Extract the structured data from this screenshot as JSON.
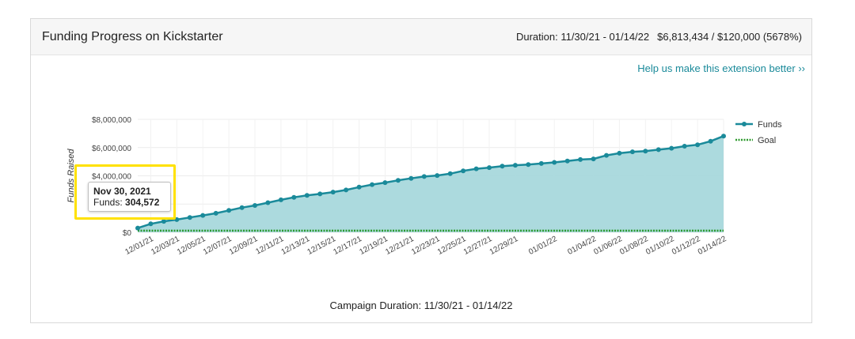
{
  "header": {
    "title": "Funding Progress on Kickstarter",
    "duration_text": "Duration: 11/30/21 - 01/14/22",
    "funding_text": "$6,813,434 / $120,000 (5678%)"
  },
  "help_link": "Help us make this extension better ››",
  "footer": "Campaign Duration: 11/30/21 - 01/14/22",
  "tooltip": {
    "date": "Nov 30, 2021",
    "label": "Funds: ",
    "value": "304,572"
  },
  "colors": {
    "funds_line": "#1a8a9a",
    "funds_fill": "#a8d8dc",
    "goal_line": "#2e9a2e",
    "highlight": "#ffe100"
  },
  "chart_data": {
    "type": "area",
    "ylabel": "Funds Raised",
    "xlabel": "Campaign Duration: 11/30/21 - 01/14/22",
    "ylim": [
      0,
      8000000
    ],
    "y_ticks": [
      "$0",
      "$2,000,000",
      "$4,000,000",
      "$6,000,000",
      "$8,000,000"
    ],
    "y_tick_values": [
      0,
      2000000,
      4000000,
      6000000,
      8000000
    ],
    "y_tick_labels_shown": [
      true,
      false,
      true,
      true,
      true
    ],
    "x_tick_labels": [
      "12/01/21",
      "12/03/21",
      "12/05/21",
      "12/07/21",
      "12/09/21",
      "12/11/21",
      "12/13/21",
      "12/15/21",
      "12/17/21",
      "12/19/21",
      "12/21/21",
      "12/23/21",
      "12/25/21",
      "12/27/21",
      "12/29/21",
      "01/01/22",
      "01/04/22",
      "01/06/22",
      "01/08/22",
      "01/10/22",
      "01/12/22",
      "01/14/22"
    ],
    "x_tick_days": [
      1,
      3,
      5,
      7,
      9,
      11,
      13,
      15,
      17,
      19,
      21,
      23,
      25,
      27,
      29,
      32,
      35,
      37,
      39,
      41,
      43,
      45
    ],
    "legend": [
      "Funds",
      "Goal"
    ],
    "legend_position": "right",
    "grid": true,
    "series": [
      {
        "name": "Funds",
        "x": [
          "11/30/21",
          "12/01/21",
          "12/02/21",
          "12/03/21",
          "12/04/21",
          "12/05/21",
          "12/06/21",
          "12/07/21",
          "12/08/21",
          "12/09/21",
          "12/10/21",
          "12/11/21",
          "12/12/21",
          "12/13/21",
          "12/14/21",
          "12/15/21",
          "12/16/21",
          "12/17/21",
          "12/18/21",
          "12/19/21",
          "12/20/21",
          "12/21/21",
          "12/22/21",
          "12/23/21",
          "12/24/21",
          "12/25/21",
          "12/26/21",
          "12/27/21",
          "12/28/21",
          "12/29/21",
          "12/30/21",
          "12/31/21",
          "01/01/22",
          "01/02/22",
          "01/03/22",
          "01/04/22",
          "01/05/22",
          "01/06/22",
          "01/07/22",
          "01/08/22",
          "01/09/22",
          "01/10/22",
          "01/11/22",
          "01/12/22",
          "01/13/22",
          "01/14/22"
        ],
        "values": [
          304572,
          600000,
          780000,
          900000,
          1050000,
          1200000,
          1350000,
          1550000,
          1750000,
          1900000,
          2100000,
          2300000,
          2480000,
          2620000,
          2720000,
          2850000,
          3000000,
          3200000,
          3380000,
          3520000,
          3680000,
          3820000,
          3950000,
          4020000,
          4150000,
          4350000,
          4500000,
          4580000,
          4680000,
          4750000,
          4800000,
          4870000,
          4950000,
          5050000,
          5150000,
          5200000,
          5450000,
          5600000,
          5700000,
          5750000,
          5850000,
          5950000,
          6100000,
          6200000,
          6450000,
          6813434
        ]
      },
      {
        "name": "Goal",
        "value": 120000
      }
    ]
  }
}
